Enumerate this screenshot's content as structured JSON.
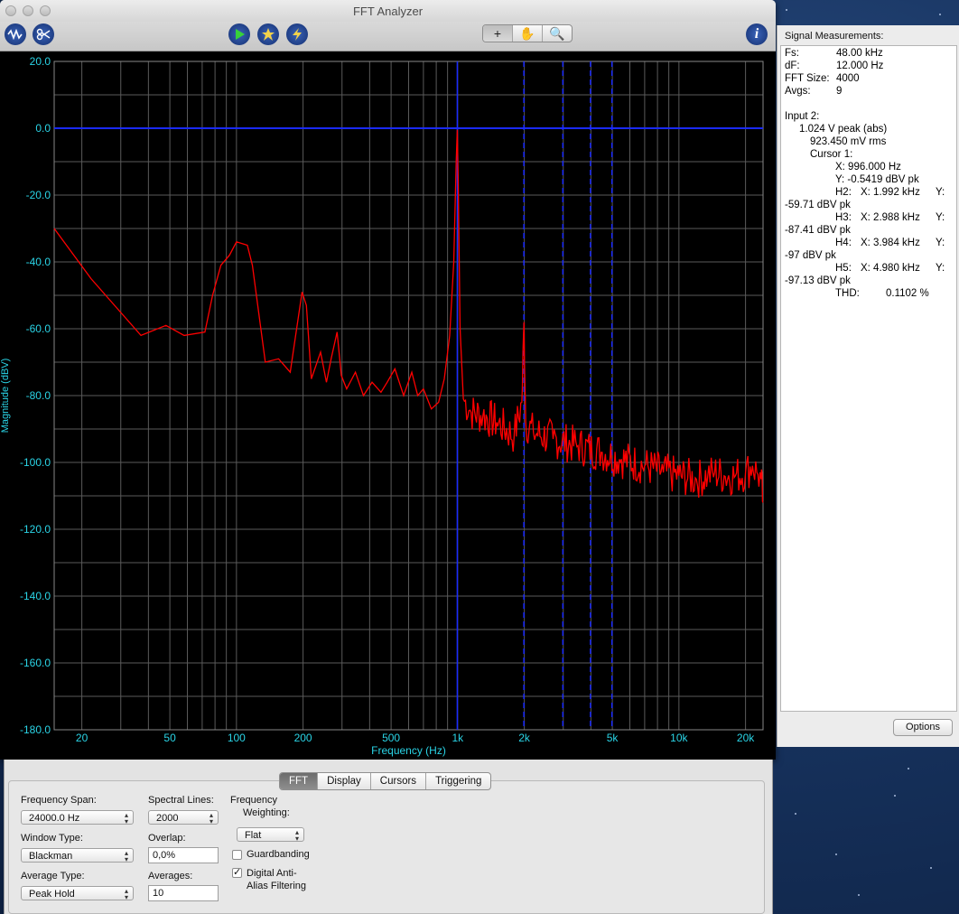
{
  "window": {
    "title": "FFT Analyzer"
  },
  "toolbar": {
    "left_icons": [
      "waveform-icon",
      "scissors-icon"
    ],
    "center_icons": [
      "play-icon",
      "record-icon",
      "lightning-icon"
    ],
    "tools": [
      "+",
      "✋",
      "🔍"
    ],
    "info_icon": "i"
  },
  "chart_data": {
    "type": "line",
    "xscale": "log",
    "xlim": [
      15,
      24000
    ],
    "ylim": [
      -180,
      20
    ],
    "xlabel": "Frequency (Hz)",
    "ylabel": "Magnitude (dBV)",
    "grid": true,
    "xticks": [
      {
        "value": 20,
        "label": "20"
      },
      {
        "value": 50,
        "label": "50"
      },
      {
        "value": 100,
        "label": "100"
      },
      {
        "value": 200,
        "label": "200"
      },
      {
        "value": 500,
        "label": "500"
      },
      {
        "value": 1000,
        "label": "1k"
      },
      {
        "value": 2000,
        "label": "2k"
      },
      {
        "value": 5000,
        "label": "5k"
      },
      {
        "value": 10000,
        "label": "10k"
      },
      {
        "value": 20000,
        "label": "20k"
      }
    ],
    "yticks": [
      "20.0",
      "0.0",
      "-20.0",
      "-40.0",
      "-60.0",
      "-80.0",
      "-100.0",
      "-120.0",
      "-140.0",
      "-160.0",
      "-180.0"
    ],
    "reference_line_y": 0,
    "cursor_lines_x": [
      996,
      1992,
      2988,
      3984,
      4980
    ],
    "colors": {
      "trace": "#ff0000",
      "cursor": "#1a2aff",
      "grid": "#5a5a5a",
      "axis_text": "#2ad4e6"
    },
    "series": [
      {
        "x": [
          15,
          22,
          37,
          48,
          58,
          72,
          78,
          85,
          93,
          100,
          112,
          118,
          135,
          155,
          175,
          198,
          207,
          218,
          240,
          255,
          268,
          285,
          298,
          315,
          345,
          375,
          410,
          450,
          480,
          520,
          570,
          620,
          660,
          700,
          760,
          820,
          870,
          920,
          960,
          985,
          996,
          1005,
          1025,
          1060,
          1150,
          1300,
          1500,
          1800,
          1950,
          1995,
          2030,
          2200,
          2700,
          3500,
          4500,
          5500,
          7000,
          8500,
          10000,
          12000,
          13500,
          14500,
          16000,
          18000,
          20000,
          21500,
          22500,
          23500,
          24000
        ],
        "y": [
          -30,
          -45,
          -62,
          -59,
          -62,
          -61,
          -50,
          -41,
          -38,
          -34,
          -35,
          -41,
          -70,
          -69,
          -73,
          -49,
          -53,
          -75,
          -67,
          -76,
          -69,
          -61,
          -74,
          -78,
          -73,
          -80,
          -76,
          -79,
          -76,
          -72,
          -80,
          -73,
          -80,
          -78,
          -84,
          -82,
          -75,
          -62,
          -40,
          -10,
          -0.5,
          -15,
          -60,
          -81,
          -85,
          -86,
          -88,
          -92,
          -82,
          -58,
          -88,
          -91,
          -93,
          -95,
          -97,
          -99,
          -101,
          -103,
          -104,
          -105,
          -104,
          -103,
          -104,
          -104,
          -103,
          -101,
          -103,
          -105,
          -112
        ]
      }
    ]
  },
  "measurements": {
    "header": "Signal Measurements:",
    "fs_label": "Fs:",
    "fs_value": "48.00 kHz",
    "df_label": "dF:",
    "df_value": "12.000 Hz",
    "fftsize_label": "FFT Size:",
    "fftsize_value": "4000",
    "avgs_label": "Avgs:",
    "avgs_value": "9",
    "input_label": "Input 2:",
    "peak": "1.024 V peak (abs)",
    "rms": "923.450 mV rms",
    "cursor_label": "Cursor 1:",
    "cursor_x": "X: 996.000 Hz",
    "cursor_y": "Y: -0.5419 dBV pk",
    "harmonics": [
      {
        "label": "H2:",
        "x": "X: 1.992 kHz",
        "y": "Y:",
        "val": "-59.71 dBV pk"
      },
      {
        "label": "H3:",
        "x": "X: 2.988 kHz",
        "y": "Y:",
        "val": "-87.41 dBV pk"
      },
      {
        "label": "H4:",
        "x": "X: 3.984 kHz",
        "y": "Y:",
        "val": "-97 dBV pk"
      },
      {
        "label": "H5:",
        "x": "X: 4.980 kHz",
        "y": "Y:",
        "val": "-97.13 dBV pk"
      }
    ],
    "thd_label": "THD:",
    "thd_value": "0.1102 %",
    "options_label": "Options"
  },
  "controls": {
    "tabs": [
      "FFT",
      "Display",
      "Cursors",
      "Triggering"
    ],
    "active_tab": "FFT",
    "frequency_span_label": "Frequency Span:",
    "frequency_span_value": "24000.0 Hz",
    "spectral_lines_label": "Spectral Lines:",
    "spectral_lines_value": "2000",
    "frequency_weighting_label1": "Frequency",
    "frequency_weighting_label2": "Weighting:",
    "frequency_weighting_value": "Flat",
    "window_type_label": "Window Type:",
    "window_type_value": "Blackman",
    "overlap_label": "Overlap:",
    "overlap_value": "0,0%",
    "guardbanding_label": "Guardbanding",
    "guardbanding_checked": false,
    "average_type_label": "Average Type:",
    "average_type_value": "Peak Hold",
    "averages_label": "Averages:",
    "averages_value": "10",
    "aa_label1": "Digital Anti-",
    "aa_label2": "Alias Filtering",
    "aa_checked": true
  }
}
